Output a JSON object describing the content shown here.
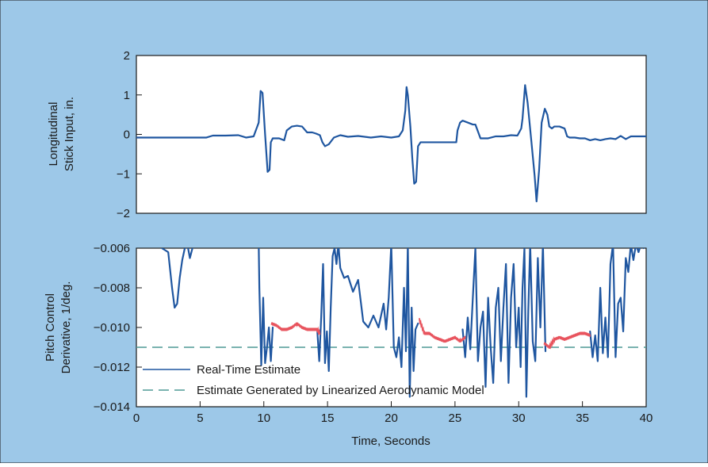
{
  "colors": {
    "background": "#9dc8e8",
    "plot_background": "#ffffff",
    "axis": "#1a1a1a",
    "series_estimate": "#1f56a0",
    "series_model": "#4e9a96",
    "series_overlay": "#e8545e"
  },
  "chart_data": [
    {
      "type": "line",
      "ylabel_line1": "Longitudinal",
      "ylabel_line2": "Stick Input, in.",
      "xlim": [
        0,
        40
      ],
      "ylim": [
        -2,
        2
      ],
      "yticks": [
        2,
        1,
        0,
        -1,
        -2
      ],
      "ytick_labels": [
        "2",
        "1",
        "0",
        "−1",
        "−2"
      ],
      "grid": false,
      "series": [
        {
          "x": [
            0,
            2,
            4,
            5.5,
            6,
            7,
            8,
            8.6,
            9.2,
            9.6,
            9.75,
            9.9,
            10.1,
            10.3,
            10.45,
            10.55,
            10.7,
            11.2,
            11.6,
            11.8,
            12.2,
            12.6,
            13,
            13.4,
            13.8,
            14.1,
            14.4,
            14.6,
            14.8,
            15.1,
            15.5,
            16,
            16.6,
            17.4,
            18.4,
            19.2,
            20,
            20.6,
            20.9,
            21.1,
            21.2,
            21.3,
            21.5,
            21.65,
            21.8,
            21.95,
            22.1,
            22.3,
            23,
            24.2,
            25.1,
            25.2,
            25.4,
            25.6,
            26,
            26.4,
            26.6,
            27,
            27.6,
            28.2,
            28.8,
            29.4,
            29.9,
            30.2,
            30.3,
            30.5,
            30.7,
            31,
            31.25,
            31.4,
            31.6,
            31.8,
            32.05,
            32.25,
            32.4,
            32.6,
            32.8,
            33.2,
            33.6,
            33.8,
            34,
            34.4,
            34.8,
            35.2,
            35.6,
            36,
            36.4,
            36.8,
            37.2,
            37.6,
            38,
            38.4,
            38.8,
            39.2,
            39.6,
            40
          ],
          "y": [
            -0.08,
            -0.08,
            -0.08,
            -0.08,
            -0.03,
            -0.03,
            -0.02,
            -0.08,
            -0.05,
            0.3,
            1.1,
            1.05,
            0,
            -0.95,
            -0.9,
            -0.2,
            -0.1,
            -0.1,
            -0.15,
            0.1,
            0.2,
            0.22,
            0.2,
            0.05,
            0.05,
            0.02,
            -0.02,
            -0.2,
            -0.3,
            -0.25,
            -0.08,
            -0.02,
            -0.06,
            -0.04,
            -0.08,
            -0.05,
            -0.08,
            -0.05,
            0.1,
            0.6,
            1.2,
            1.0,
            0.2,
            -0.6,
            -1.25,
            -1.2,
            -0.3,
            -0.2,
            -0.2,
            -0.2,
            -0.2,
            0.1,
            0.3,
            0.35,
            0.3,
            0.25,
            0.25,
            -0.1,
            -0.1,
            -0.05,
            -0.05,
            -0.02,
            -0.03,
            0.15,
            0.4,
            1.25,
            0.8,
            -0.2,
            -1.05,
            -1.7,
            -0.9,
            0.3,
            0.65,
            0.5,
            0.2,
            0.15,
            0.2,
            0.2,
            0.15,
            -0.05,
            -0.08,
            -0.08,
            -0.1,
            -0.1,
            -0.15,
            -0.12,
            -0.15,
            -0.12,
            -0.1,
            -0.12,
            -0.04,
            -0.12,
            -0.05,
            -0.05,
            -0.05,
            -0.05
          ]
        }
      ]
    },
    {
      "type": "line",
      "ylabel_line1": "Pitch Control",
      "ylabel_line2": "Derivative, 1/deg.",
      "xlabel": "Time, Seconds",
      "xlim": [
        0,
        40
      ],
      "ylim": [
        -0.014,
        -0.006
      ],
      "xticks": [
        0,
        5,
        10,
        15,
        20,
        25,
        30,
        35,
        40
      ],
      "xtick_labels": [
        "0",
        "5",
        "10",
        "15",
        "20",
        "25",
        "30",
        "35",
        "40"
      ],
      "yticks": [
        -0.006,
        -0.008,
        -0.01,
        -0.012,
        -0.014
      ],
      "ytick_labels": [
        "−0.006",
        "−0.008",
        "−0.010",
        "−0.012",
        "−0.014"
      ],
      "grid": false,
      "legend_position": "bottom-left",
      "series": [
        {
          "name": "Real-Time Estimate",
          "style": "solid",
          "x": [
            2.0,
            2.5,
            2.8,
            3.0,
            3.2,
            3.4,
            3.6,
            3.8,
            4.0,
            4.2,
            4.4,
            4.6,
            null,
            9.6,
            9.65,
            9.8,
            9.95,
            10.1,
            10.25,
            10.4,
            10.55,
            10.7,
            null,
            14.2,
            14.35,
            14.5,
            14.65,
            14.8,
            14.95,
            15.1,
            15.25,
            15.4,
            15.55,
            15.7,
            15.85,
            16.0,
            16.3,
            16.6,
            17.0,
            17.4,
            17.8,
            18.2,
            18.6,
            19.0,
            19.4,
            19.6,
            19.8,
            20.0,
            20.2,
            20.4,
            20.6,
            20.8,
            21.0,
            21.15,
            21.3,
            21.45,
            21.6,
            21.75,
            21.9,
            22.1,
            null,
            25.6,
            25.8,
            26.0,
            26.2,
            26.4,
            26.6,
            26.8,
            27.0,
            27.2,
            27.4,
            27.6,
            27.8,
            28.0,
            28.2,
            28.4,
            28.6,
            28.8,
            29.0,
            29.2,
            29.4,
            29.6,
            29.8,
            30.0,
            30.15,
            30.3,
            30.45,
            30.6,
            30.75,
            30.9,
            31.1,
            31.3,
            31.5,
            31.7,
            31.9,
            32.1,
            null,
            35.6,
            35.8,
            36.0,
            36.2,
            36.4,
            36.6,
            36.8,
            37.0,
            37.2,
            37.4,
            37.6,
            37.8,
            38.0,
            38.2,
            38.4,
            38.6,
            38.8,
            39.0,
            39.2,
            39.4,
            39.6,
            39.8,
            40.0
          ],
          "y": [
            -0.006,
            -0.0062,
            -0.008,
            -0.009,
            -0.0088,
            -0.0075,
            -0.0066,
            -0.006,
            -0.0058,
            -0.0065,
            -0.006,
            -0.0058,
            null,
            -0.0058,
            -0.008,
            -0.0119,
            -0.0085,
            -0.0118,
            -0.011,
            -0.01,
            -0.0117,
            -0.01,
            null,
            -0.0102,
            -0.0117,
            -0.0095,
            -0.0068,
            -0.0118,
            -0.0102,
            -0.0122,
            -0.009,
            -0.0064,
            -0.006,
            -0.0068,
            -0.0058,
            -0.007,
            -0.0075,
            -0.0074,
            -0.0082,
            -0.0076,
            -0.0097,
            -0.01,
            -0.0094,
            -0.01,
            -0.0088,
            -0.0101,
            -0.0085,
            -0.0058,
            -0.011,
            -0.0115,
            -0.0105,
            -0.012,
            -0.008,
            -0.0112,
            -0.0058,
            -0.0135,
            -0.009,
            -0.0122,
            -0.0101,
            -0.0098,
            null,
            -0.0101,
            -0.0115,
            -0.0095,
            -0.0111,
            -0.0085,
            -0.006,
            -0.0117,
            -0.01,
            -0.0092,
            -0.013,
            -0.0085,
            -0.011,
            -0.0128,
            -0.009,
            -0.008,
            -0.0117,
            -0.009,
            -0.0068,
            -0.0128,
            -0.0085,
            -0.0068,
            -0.011,
            -0.009,
            -0.012,
            -0.008,
            -0.006,
            -0.0135,
            -0.0092,
            -0.0058,
            -0.0107,
            -0.0117,
            -0.0065,
            -0.01,
            -0.0058,
            -0.0112,
            null,
            -0.0102,
            -0.0115,
            -0.0104,
            -0.0117,
            -0.008,
            -0.0113,
            -0.0095,
            -0.0115,
            -0.0068,
            -0.0058,
            -0.0115,
            -0.0088,
            -0.0085,
            -0.0102,
            -0.0065,
            -0.0072,
            -0.0058,
            -0.0066,
            -0.0058,
            -0.0062,
            -0.0058,
            -0.006,
            -0.0058
          ]
        },
        {
          "name": "Estimate Generated by Linearized Aerodynamic Model",
          "style": "dashed",
          "x": [
            0,
            40
          ],
          "y": [
            -0.011,
            -0.011
          ]
        },
        {
          "style": "solid",
          "x": [
            10.6,
            11.0,
            11.4,
            11.8,
            12.2,
            12.6,
            13.0,
            13.4,
            13.8,
            14.2,
            14.4,
            null,
            22.2,
            22.6,
            23.0,
            23.4,
            23.8,
            24.2,
            24.6,
            25.0,
            25.4,
            25.8,
            null,
            32.0,
            32.4,
            32.8,
            33.2,
            33.6,
            34.0,
            34.4,
            34.8,
            35.2,
            35.6
          ],
          "y": [
            -0.0098,
            -0.0099,
            -0.0101,
            -0.0101,
            -0.01,
            -0.0098,
            -0.01,
            -0.0101,
            -0.0101,
            -0.0101,
            -0.0103,
            null,
            -0.0096,
            -0.0103,
            -0.0103,
            -0.0105,
            -0.0106,
            -0.0107,
            -0.0106,
            -0.0105,
            -0.0107,
            -0.0105,
            null,
            -0.0108,
            -0.011,
            -0.0106,
            -0.0105,
            -0.0106,
            -0.0105,
            -0.0104,
            -0.0103,
            -0.0103,
            -0.0104
          ]
        }
      ]
    }
  ]
}
